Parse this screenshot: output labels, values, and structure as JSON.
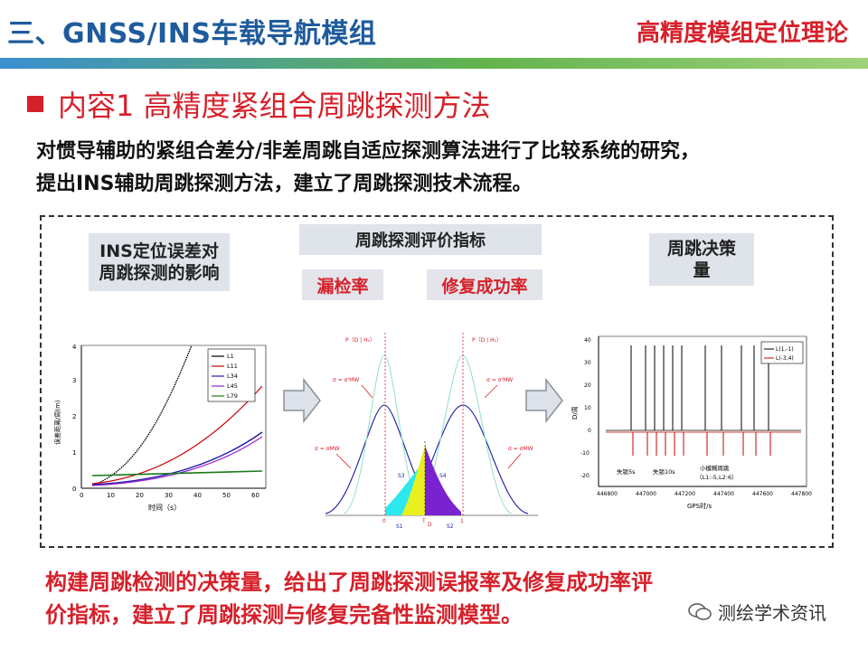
{
  "header": {
    "title": "三、GNSS/INS车载导航模组",
    "right": "高精度模组定位理论"
  },
  "section": {
    "title": "内容1  高精度紧组合周跳探测方法"
  },
  "intro": [
    "对惯导辅助的紧组合差分/非差周跳自适应探测算法进行了比较系统的研究，",
    "提出INS辅助周跳探测方法，建立了周跳探测技术流程。"
  ],
  "boxes": {
    "ins_line1": "INS定位误差对",
    "ins_line2": "周跳探测的影响",
    "eval": "周跳探测评价指标",
    "missed": "漏检率",
    "repair": "修复成功率",
    "decision_line1": "周跳决策",
    "decision_line2": "量"
  },
  "chart1": {
    "ylabel": "误差距离/周(m)",
    "xlabel": "时间（s）",
    "x_ticks": [
      "0",
      "10",
      "20",
      "30",
      "40",
      "50",
      "60"
    ],
    "y_ticks": [
      "0",
      "1",
      "2",
      "3",
      "4"
    ],
    "legend": [
      "L1",
      "L11",
      "L34",
      "L45",
      "L79"
    ],
    "colors": [
      "#000000",
      "#cc0000",
      "#1a1aaa",
      "#9a22c8",
      "#1a7a1a"
    ]
  },
  "chart2": {
    "label_pdh0": "P（D | H₀）",
    "label_pdh1": "P（D | H₁）",
    "label_s1": "S1",
    "label_s2": "S2",
    "label_s3": "S3",
    "label_s4": "S4",
    "label_0": "0",
    "label_1": "1",
    "label_t": "T",
    "label_d": "D",
    "sigma_mw1": "σ = σ'MW",
    "sigma_mw2": "σ = σ'MW",
    "sigma_mw3": "σ = σMW",
    "sigma_mw4": "σ = σMW"
  },
  "chart3": {
    "ylabel": "D/周",
    "xlabel": "GPS时/s",
    "x_ticks": [
      "446800",
      "447000",
      "447200",
      "447400",
      "447600",
      "447800"
    ],
    "y_ticks": [
      "40",
      "30",
      "20",
      "10",
      "0",
      "-10",
      "-20"
    ],
    "legend": [
      "L(1,-1)",
      "L(-3,4)"
    ],
    "ann1": "失锁5s",
    "ann2": "失锁10s",
    "ann3a": "小模糊周跳",
    "ann3b": "（L1:-5,L2:6）"
  },
  "conclusion": [
    "构建周跳检测的决策量，给出了周跳探测误报率及修复成功率评",
    "价指标，建立了周跳探测与修复完备性监测模型。"
  ],
  "watermark": "测绘学术资讯"
}
